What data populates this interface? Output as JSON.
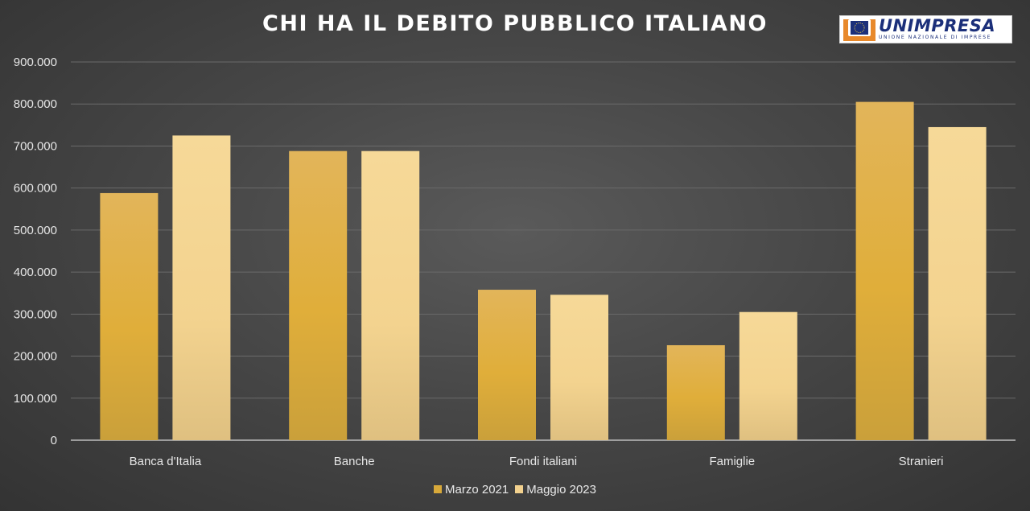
{
  "header": {
    "title": "CHI HA IL DEBITO PUBBLICO ITALIANO"
  },
  "logo": {
    "name": "UNIMPRESA",
    "subtitle": "UNIONE NAZIONALE DI IMPRESE"
  },
  "chart_data": {
    "type": "bar",
    "title": "CHI HA IL DEBITO PUBBLICO ITALIANO",
    "categories": [
      "Banca d'Italia",
      "Banche",
      "Fondi italiani",
      "Famiglie",
      "Stranieri"
    ],
    "series": [
      {
        "name": "Marzo 2021",
        "values": [
          588000,
          688000,
          358000,
          226000,
          805000
        ],
        "color": "#d8a93a"
      },
      {
        "name": "Maggio 2023",
        "values": [
          725000,
          688000,
          346000,
          305000,
          745000
        ],
        "color": "#f2d18e"
      }
    ],
    "ylim": [
      0,
      900000
    ],
    "yticks": [
      "0",
      "100.000",
      "200.000",
      "300.000",
      "400.000",
      "500.000",
      "600.000",
      "700.000",
      "800.000",
      "900.000"
    ],
    "grid": true,
    "legend_position": "bottom"
  }
}
